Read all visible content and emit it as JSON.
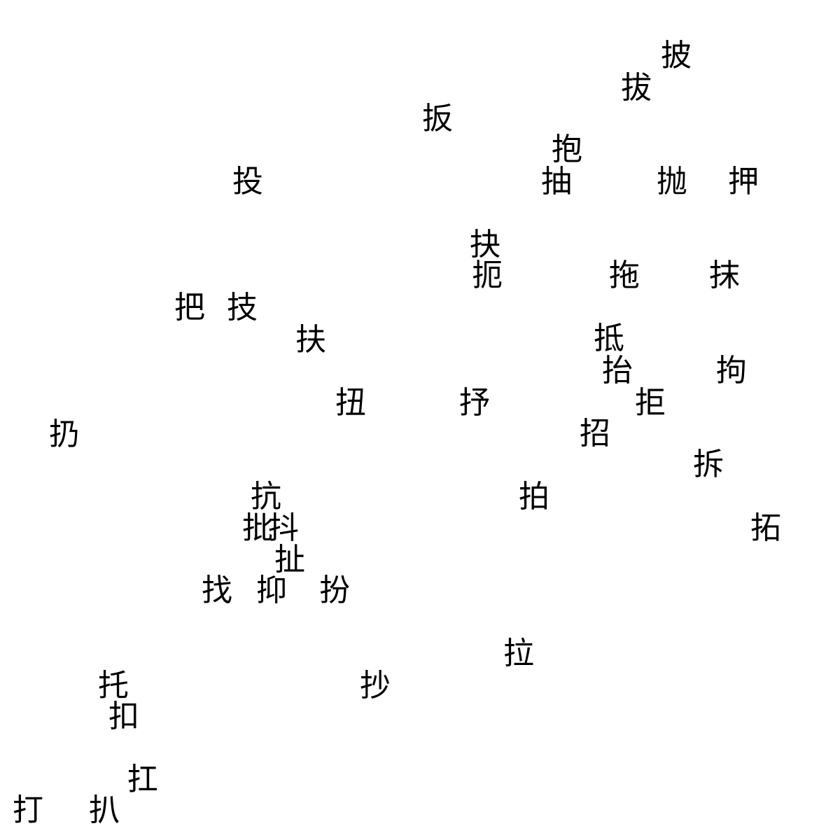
{
  "text_color": "#000000",
  "background": "#ffffff",
  "glyphs": [
    "披",
    "拔",
    "扳",
    "抱",
    "投",
    "抽",
    "抛",
    "押",
    "抉",
    "扼",
    "拖",
    "抹",
    "把",
    "技",
    "扶",
    "抵",
    "抬",
    "拘",
    "扭",
    "抒",
    "拒",
    "扔",
    "招",
    "拆",
    "抗",
    "拍",
    "批",
    "抖",
    "拓",
    "扯",
    "找",
    "抑",
    "扮",
    "拉",
    "托",
    "抄",
    "扣",
    "扛",
    "打",
    "扒"
  ]
}
